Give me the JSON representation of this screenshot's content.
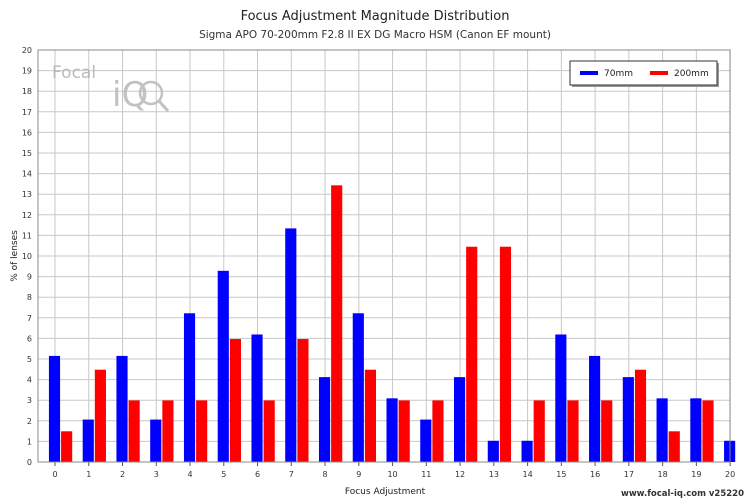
{
  "chart_data": {
    "type": "bar",
    "title": "Focus Adjustment Magnitude Distribution",
    "subtitle": "Sigma APO 70-200mm F2.8 II EX DG Macro HSM (Canon EF mount)",
    "xlabel": "Focus Adjustment",
    "ylabel": "% of lenses",
    "categories": [
      "0",
      "1",
      "2",
      "3",
      "4",
      "5",
      "6",
      "7",
      "8",
      "9",
      "10",
      "11",
      "12",
      "13",
      "14",
      "15",
      "16",
      "17",
      "18",
      "19",
      "20"
    ],
    "ylim": [
      0,
      20
    ],
    "yticks": [
      "0",
      "1",
      "2",
      "3",
      "4",
      "5",
      "6",
      "7",
      "8",
      "9",
      "10",
      "11",
      "12",
      "13",
      "14",
      "15",
      "16",
      "17",
      "18",
      "19",
      "20"
    ],
    "grid": true,
    "legend_position": "top-right",
    "series": [
      {
        "name": "70mm",
        "color": "#0000ff",
        "values": [
          5.15,
          2.06,
          5.15,
          2.06,
          7.22,
          9.28,
          6.19,
          11.34,
          4.12,
          7.22,
          3.09,
          2.06,
          4.12,
          1.03,
          1.03,
          6.19,
          5.15,
          4.12,
          3.09,
          3.09,
          1.03
        ]
      },
      {
        "name": "200mm",
        "color": "#ff0000",
        "values": [
          1.49,
          4.48,
          2.99,
          2.99,
          2.99,
          5.97,
          2.99,
          5.97,
          13.43,
          4.48,
          2.99,
          2.99,
          10.45,
          10.45,
          2.99,
          2.99,
          2.99,
          4.48,
          1.49,
          2.99,
          0
        ]
      }
    ]
  },
  "logo": {
    "text": "Focal",
    "mark": "iQ"
  },
  "footer": "www.focal-iq.com  v25220"
}
